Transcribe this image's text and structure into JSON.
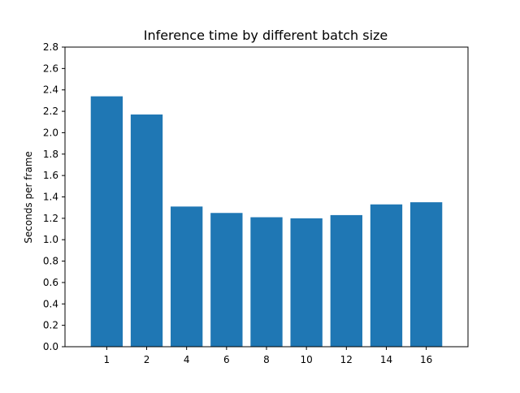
{
  "chart_data": {
    "type": "bar",
    "title": "Inference time by different batch size",
    "xlabel": "",
    "ylabel": "Seconds per frame",
    "categories": [
      "1",
      "2",
      "4",
      "6",
      "8",
      "10",
      "12",
      "14",
      "16"
    ],
    "values": [
      2.34,
      2.17,
      1.31,
      1.25,
      1.21,
      1.2,
      1.23,
      1.33,
      1.35
    ],
    "ylim": [
      0,
      2.8
    ],
    "yticks": [
      "0.0",
      "0.2",
      "0.4",
      "0.6",
      "0.8",
      "1.0",
      "1.2",
      "1.4",
      "1.6",
      "1.8",
      "2.0",
      "2.2",
      "2.4",
      "2.6",
      "2.8"
    ],
    "grid": false,
    "legend": "none",
    "colors": {
      "bar": "#1f77b4"
    }
  }
}
